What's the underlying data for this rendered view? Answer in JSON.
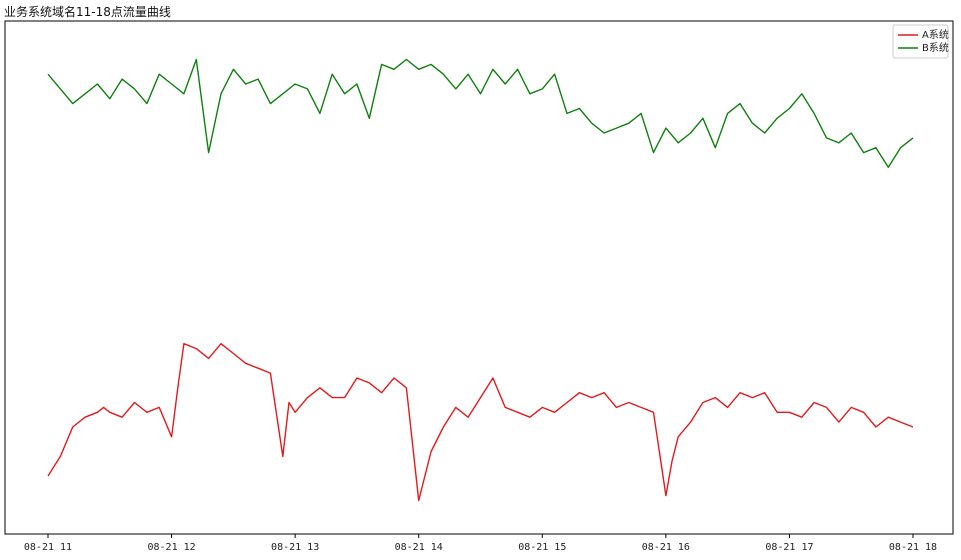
{
  "chart_data": {
    "type": "line",
    "title": "业务系统域名11-18点流量曲线",
    "xlabel": "",
    "ylabel": "",
    "grid": false,
    "legend": {
      "position": "top-right",
      "entries": [
        "A系统",
        "B系统"
      ]
    },
    "x_ticks": [
      "08-21 11",
      "08-21 12",
      "08-21 13",
      "08-21 14",
      "08-21 15",
      "08-21 16",
      "08-21 17",
      "08-21 18"
    ],
    "x_range_hours": [
      11,
      18
    ],
    "y_range": [
      0,
      100
    ],
    "series": [
      {
        "name": "A系统",
        "color": "#e31a1c",
        "x_hours": [
          11.0,
          11.1,
          11.2,
          11.3,
          11.4,
          11.45,
          11.5,
          11.6,
          11.7,
          11.8,
          11.9,
          12.0,
          12.05,
          12.1,
          12.2,
          12.3,
          12.4,
          12.5,
          12.6,
          12.7,
          12.8,
          12.9,
          12.95,
          13.0,
          13.1,
          13.2,
          13.3,
          13.4,
          13.5,
          13.6,
          13.7,
          13.8,
          13.9,
          14.0,
          14.05,
          14.1,
          14.2,
          14.3,
          14.4,
          14.5,
          14.6,
          14.7,
          14.8,
          14.9,
          15.0,
          15.1,
          15.2,
          15.3,
          15.4,
          15.5,
          15.6,
          15.7,
          15.8,
          15.9,
          16.0,
          16.05,
          16.1,
          16.2,
          16.3,
          16.4,
          16.5,
          16.6,
          16.7,
          16.8,
          16.9,
          17.0,
          17.1,
          17.2,
          17.3,
          17.4,
          17.5,
          17.6,
          17.7,
          17.8,
          17.9,
          18.0
        ],
        "values": [
          10,
          14,
          20,
          22,
          23,
          24,
          23,
          22,
          25,
          23,
          24,
          18,
          28,
          37,
          36,
          34,
          37,
          35,
          33,
          32,
          31,
          14,
          25,
          23,
          26,
          28,
          26,
          26,
          30,
          29,
          27,
          30,
          28,
          5,
          10,
          15,
          20,
          24,
          22,
          26,
          30,
          24,
          23,
          22,
          24,
          23,
          25,
          27,
          26,
          27,
          24,
          25,
          24,
          23,
          6,
          13,
          18,
          21,
          25,
          26,
          24,
          27,
          26,
          27,
          23,
          23,
          22,
          25,
          24,
          21,
          24,
          23,
          20,
          22,
          21,
          20
        ]
      },
      {
        "name": "B系统",
        "color": "#0f800f",
        "x_hours": [
          11.0,
          11.1,
          11.2,
          11.3,
          11.4,
          11.5,
          11.6,
          11.7,
          11.8,
          11.9,
          12.0,
          12.1,
          12.2,
          12.3,
          12.4,
          12.5,
          12.6,
          12.7,
          12.8,
          12.9,
          13.0,
          13.1,
          13.2,
          13.3,
          13.4,
          13.5,
          13.6,
          13.7,
          13.8,
          13.9,
          14.0,
          14.1,
          14.2,
          14.3,
          14.4,
          14.5,
          14.6,
          14.7,
          14.8,
          14.9,
          15.0,
          15.1,
          15.2,
          15.3,
          15.4,
          15.5,
          15.6,
          15.7,
          15.8,
          15.9,
          16.0,
          16.1,
          16.2,
          16.3,
          16.4,
          16.5,
          16.6,
          16.7,
          16.8,
          16.9,
          17.0,
          17.1,
          17.2,
          17.3,
          17.4,
          17.5,
          17.6,
          17.7,
          17.8,
          17.9,
          18.0
        ],
        "values": [
          92,
          89,
          86,
          88,
          90,
          87,
          91,
          89,
          86,
          92,
          90,
          88,
          95,
          76,
          88,
          93,
          90,
          91,
          86,
          88,
          90,
          89,
          84,
          92,
          88,
          90,
          83,
          94,
          93,
          95,
          93,
          94,
          92,
          89,
          92,
          88,
          93,
          90,
          93,
          88,
          89,
          92,
          84,
          85,
          82,
          80,
          81,
          82,
          84,
          76,
          81,
          78,
          80,
          83,
          77,
          84,
          86,
          82,
          80,
          83,
          85,
          88,
          84,
          79,
          78,
          80,
          76,
          77,
          73,
          77,
          79
        ]
      }
    ]
  }
}
